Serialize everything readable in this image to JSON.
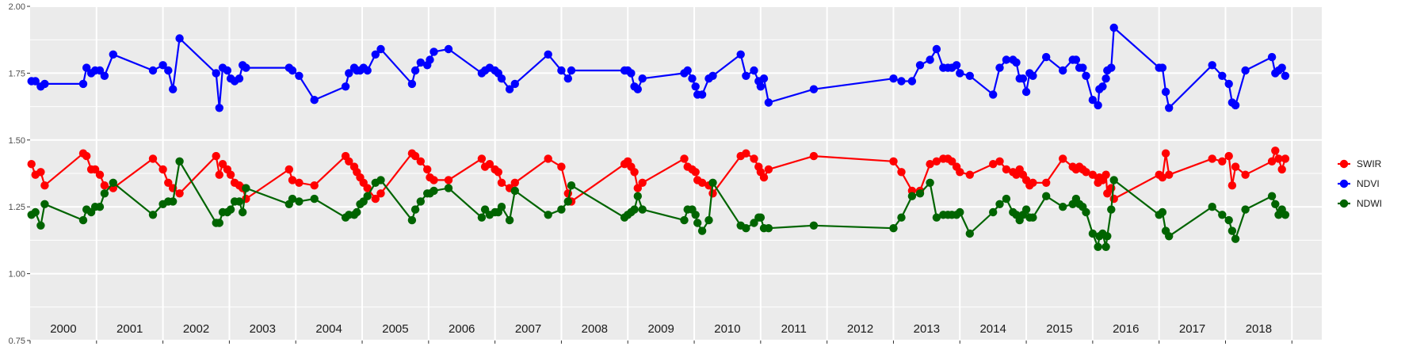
{
  "chart_data": {
    "type": "line",
    "title": "",
    "xlabel": "",
    "ylabel": "",
    "ylim": [
      0.75,
      2.0
    ],
    "xlim": [
      1999.5,
      2018.95
    ],
    "yticks": [
      "0.75",
      "1.00",
      "1.25",
      "1.50",
      "1.75",
      "2.00"
    ],
    "year_labels": [
      "2000",
      "2001",
      "2002",
      "2003",
      "2004",
      "2005",
      "2006",
      "2007",
      "2008",
      "2009",
      "2010",
      "2011",
      "2012",
      "2013",
      "2014",
      "2015",
      "2016",
      "2017",
      "2018"
    ],
    "grid": true,
    "legend_position": "right",
    "series": [
      {
        "name": "SWIR",
        "color": "#ff0000",
        "x": [
          1999.52,
          1999.58,
          1999.66,
          1999.72,
          2000.3,
          2000.35,
          2000.42,
          2000.48,
          2000.55,
          2000.62,
          2000.75,
          2001.35,
          2001.5,
          2001.58,
          2001.65,
          2001.75,
          2002.3,
          2002.35,
          2002.4,
          2002.47,
          2002.52,
          2002.58,
          2002.65,
          2002.7,
          2002.75,
          2003.4,
          2003.45,
          2003.55,
          2003.78,
          2004.25,
          2004.3,
          2004.38,
          2004.42,
          2004.47,
          2004.52,
          2004.58,
          2004.7,
          2004.78,
          2005.25,
          2005.3,
          2005.38,
          2005.48,
          2005.52,
          2005.58,
          2005.8,
          2006.3,
          2006.35,
          2006.42,
          2006.5,
          2006.55,
          2006.6,
          2006.72,
          2006.8,
          2007.3,
          2007.5,
          2007.6,
          2007.65,
          2008.45,
          2008.5,
          2008.55,
          2008.6,
          2008.65,
          2008.72,
          2009.35,
          2009.4,
          2009.47,
          2009.52,
          2009.55,
          2009.62,
          2009.72,
          2009.78,
          2010.2,
          2010.28,
          2010.4,
          2010.47,
          2010.5,
          2010.55,
          2010.62,
          2011.3,
          2012.5,
          2012.62,
          2012.78,
          2012.9,
          2013.05,
          2013.15,
          2013.25,
          2013.32,
          2013.38,
          2013.45,
          2013.5,
          2013.65,
          2014.0,
          2014.1,
          2014.2,
          2014.3,
          2014.35,
          2014.4,
          2014.45,
          2014.5,
          2014.55,
          2014.6,
          2014.8,
          2015.05,
          2015.2,
          2015.25,
          2015.3,
          2015.35,
          2015.4,
          2015.5,
          2015.58,
          2015.6,
          2015.65,
          2015.7,
          2015.72,
          2015.78,
          2015.82,
          2016.5,
          2016.55,
          2016.6,
          2016.65,
          2017.3,
          2017.45,
          2017.55,
          2017.6,
          2017.65,
          2017.8,
          2018.2,
          2018.25,
          2018.3,
          2018.35,
          2018.4
        ],
        "values": [
          1.41,
          1.37,
          1.38,
          1.33,
          1.45,
          1.44,
          1.39,
          1.39,
          1.37,
          1.33,
          1.32,
          1.43,
          1.39,
          1.34,
          1.32,
          1.3,
          1.44,
          1.37,
          1.41,
          1.39,
          1.37,
          1.34,
          1.33,
          1.32,
          1.28,
          1.39,
          1.35,
          1.34,
          1.33,
          1.44,
          1.42,
          1.4,
          1.38,
          1.36,
          1.34,
          1.32,
          1.28,
          1.3,
          1.45,
          1.44,
          1.42,
          1.39,
          1.36,
          1.35,
          1.35,
          1.43,
          1.4,
          1.41,
          1.39,
          1.38,
          1.34,
          1.32,
          1.34,
          1.43,
          1.4,
          1.3,
          1.27,
          1.41,
          1.42,
          1.4,
          1.38,
          1.32,
          1.34,
          1.43,
          1.4,
          1.39,
          1.38,
          1.35,
          1.34,
          1.33,
          1.3,
          1.44,
          1.45,
          1.43,
          1.4,
          1.38,
          1.36,
          1.39,
          1.44,
          1.42,
          1.38,
          1.31,
          1.31,
          1.41,
          1.42,
          1.43,
          1.43,
          1.42,
          1.4,
          1.38,
          1.37,
          1.41,
          1.42,
          1.39,
          1.38,
          1.37,
          1.39,
          1.37,
          1.35,
          1.33,
          1.34,
          1.34,
          1.43,
          1.4,
          1.39,
          1.4,
          1.39,
          1.38,
          1.37,
          1.34,
          1.36,
          1.35,
          1.37,
          1.3,
          1.32,
          1.28,
          1.37,
          1.36,
          1.45,
          1.37,
          1.43,
          1.42,
          1.44,
          1.33,
          1.4,
          1.37,
          1.42,
          1.46,
          1.43,
          1.39,
          1.43
        ],
        "style": "line+points"
      },
      {
        "name": "NDVI",
        "color": "#0000ff",
        "x": [
          1999.52,
          1999.58,
          1999.66,
          1999.72,
          2000.3,
          2000.35,
          2000.42,
          2000.48,
          2000.55,
          2000.62,
          2000.75,
          2001.35,
          2001.5,
          2001.58,
          2001.65,
          2001.75,
          2002.3,
          2002.35,
          2002.4,
          2002.47,
          2002.52,
          2002.58,
          2002.65,
          2002.7,
          2002.75,
          2003.4,
          2003.45,
          2003.55,
          2003.78,
          2004.25,
          2004.3,
          2004.38,
          2004.42,
          2004.47,
          2004.52,
          2004.58,
          2004.7,
          2004.78,
          2005.25,
          2005.3,
          2005.38,
          2005.48,
          2005.52,
          2005.58,
          2005.8,
          2006.3,
          2006.35,
          2006.42,
          2006.5,
          2006.55,
          2006.6,
          2006.72,
          2006.8,
          2007.3,
          2007.5,
          2007.6,
          2007.65,
          2008.45,
          2008.5,
          2008.55,
          2008.6,
          2008.65,
          2008.72,
          2009.35,
          2009.4,
          2009.47,
          2009.52,
          2009.55,
          2009.62,
          2009.72,
          2009.78,
          2010.2,
          2010.28,
          2010.4,
          2010.47,
          2010.5,
          2010.55,
          2010.62,
          2011.3,
          2012.5,
          2012.62,
          2012.78,
          2012.9,
          2013.05,
          2013.15,
          2013.25,
          2013.32,
          2013.38,
          2013.45,
          2013.5,
          2013.65,
          2014.0,
          2014.1,
          2014.2,
          2014.3,
          2014.35,
          2014.4,
          2014.45,
          2014.5,
          2014.55,
          2014.6,
          2014.8,
          2015.05,
          2015.2,
          2015.25,
          2015.3,
          2015.35,
          2015.4,
          2015.5,
          2015.58,
          2015.6,
          2015.65,
          2015.7,
          2015.72,
          2015.78,
          2015.82,
          2016.5,
          2016.55,
          2016.6,
          2016.65,
          2017.3,
          2017.45,
          2017.55,
          2017.6,
          2017.65,
          2017.8,
          2018.2,
          2018.25,
          2018.3,
          2018.35,
          2018.4
        ],
        "values": [
          1.72,
          1.72,
          1.7,
          1.71,
          1.71,
          1.77,
          1.75,
          1.76,
          1.76,
          1.74,
          1.82,
          1.76,
          1.78,
          1.76,
          1.69,
          1.88,
          1.75,
          1.62,
          1.77,
          1.76,
          1.73,
          1.72,
          1.73,
          1.78,
          1.77,
          1.77,
          1.76,
          1.74,
          1.65,
          1.7,
          1.75,
          1.77,
          1.76,
          1.76,
          1.77,
          1.76,
          1.82,
          1.84,
          1.71,
          1.76,
          1.79,
          1.78,
          1.8,
          1.83,
          1.84,
          1.75,
          1.76,
          1.77,
          1.76,
          1.75,
          1.73,
          1.69,
          1.71,
          1.82,
          1.76,
          1.73,
          1.76,
          1.76,
          1.76,
          1.75,
          1.7,
          1.69,
          1.73,
          1.75,
          1.76,
          1.73,
          1.7,
          1.67,
          1.67,
          1.73,
          1.74,
          1.82,
          1.74,
          1.76,
          1.72,
          1.7,
          1.73,
          1.64,
          1.69,
          1.73,
          1.72,
          1.72,
          1.78,
          1.8,
          1.84,
          1.77,
          1.77,
          1.77,
          1.78,
          1.75,
          1.74,
          1.67,
          1.77,
          1.8,
          1.8,
          1.79,
          1.73,
          1.73,
          1.68,
          1.75,
          1.74,
          1.81,
          1.76,
          1.8,
          1.8,
          1.77,
          1.77,
          1.74,
          1.65,
          1.63,
          1.69,
          1.7,
          1.73,
          1.76,
          1.77,
          1.92,
          1.77,
          1.77,
          1.68,
          1.62,
          1.78,
          1.74,
          1.71,
          1.64,
          1.63,
          1.76,
          1.81,
          1.75,
          1.76,
          1.77,
          1.74
        ],
        "style": "line+points"
      },
      {
        "name": "NDWI",
        "color": "#006400",
        "x": [
          1999.52,
          1999.58,
          1999.66,
          1999.72,
          2000.3,
          2000.35,
          2000.42,
          2000.48,
          2000.55,
          2000.62,
          2000.75,
          2001.35,
          2001.5,
          2001.58,
          2001.65,
          2001.75,
          2002.3,
          2002.35,
          2002.4,
          2002.47,
          2002.52,
          2002.58,
          2002.65,
          2002.7,
          2002.75,
          2003.4,
          2003.45,
          2003.55,
          2003.78,
          2004.25,
          2004.3,
          2004.38,
          2004.42,
          2004.47,
          2004.52,
          2004.58,
          2004.7,
          2004.78,
          2005.25,
          2005.3,
          2005.38,
          2005.48,
          2005.52,
          2005.58,
          2005.8,
          2006.3,
          2006.35,
          2006.42,
          2006.5,
          2006.55,
          2006.6,
          2006.72,
          2006.8,
          2007.3,
          2007.5,
          2007.6,
          2007.65,
          2008.45,
          2008.5,
          2008.55,
          2008.6,
          2008.65,
          2008.72,
          2009.35,
          2009.4,
          2009.47,
          2009.52,
          2009.55,
          2009.62,
          2009.72,
          2009.78,
          2010.2,
          2010.28,
          2010.4,
          2010.47,
          2010.5,
          2010.55,
          2010.62,
          2011.3,
          2012.5,
          2012.62,
          2012.78,
          2012.9,
          2013.05,
          2013.15,
          2013.25,
          2013.32,
          2013.38,
          2013.45,
          2013.5,
          2013.65,
          2014.0,
          2014.1,
          2014.2,
          2014.3,
          2014.35,
          2014.4,
          2014.45,
          2014.5,
          2014.55,
          2014.6,
          2014.8,
          2015.05,
          2015.2,
          2015.25,
          2015.3,
          2015.35,
          2015.4,
          2015.5,
          2015.58,
          2015.6,
          2015.65,
          2015.7,
          2015.72,
          2015.78,
          2015.82,
          2016.5,
          2016.55,
          2016.6,
          2016.65,
          2017.3,
          2017.45,
          2017.55,
          2017.6,
          2017.65,
          2017.8,
          2018.2,
          2018.25,
          2018.3,
          2018.35,
          2018.4
        ],
        "values": [
          1.22,
          1.23,
          1.18,
          1.26,
          1.2,
          1.24,
          1.23,
          1.25,
          1.25,
          1.3,
          1.34,
          1.22,
          1.26,
          1.27,
          1.27,
          1.42,
          1.19,
          1.19,
          1.23,
          1.23,
          1.24,
          1.27,
          1.27,
          1.23,
          1.32,
          1.26,
          1.28,
          1.27,
          1.28,
          1.21,
          1.22,
          1.22,
          1.23,
          1.26,
          1.27,
          1.29,
          1.34,
          1.35,
          1.2,
          1.24,
          1.27,
          1.3,
          1.3,
          1.31,
          1.32,
          1.21,
          1.24,
          1.22,
          1.23,
          1.23,
          1.25,
          1.2,
          1.31,
          1.22,
          1.24,
          1.27,
          1.33,
          1.21,
          1.22,
          1.23,
          1.24,
          1.29,
          1.24,
          1.2,
          1.24,
          1.24,
          1.22,
          1.19,
          1.16,
          1.2,
          1.34,
          1.18,
          1.17,
          1.19,
          1.21,
          1.21,
          1.17,
          1.17,
          1.18,
          1.17,
          1.21,
          1.29,
          1.3,
          1.34,
          1.21,
          1.22,
          1.22,
          1.22,
          1.22,
          1.23,
          1.15,
          1.23,
          1.26,
          1.28,
          1.23,
          1.22,
          1.2,
          1.22,
          1.24,
          1.21,
          1.21,
          1.29,
          1.25,
          1.26,
          1.28,
          1.26,
          1.25,
          1.23,
          1.15,
          1.1,
          1.14,
          1.15,
          1.1,
          1.14,
          1.24,
          1.35,
          1.22,
          1.23,
          1.16,
          1.14,
          1.25,
          1.22,
          1.2,
          1.16,
          1.13,
          1.24,
          1.29,
          1.26,
          1.22,
          1.24,
          1.22
        ],
        "style": "line+points"
      }
    ]
  }
}
